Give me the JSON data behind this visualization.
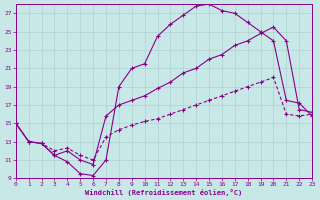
{
  "bg_color": "#c8e8e8",
  "line_color": "#880088",
  "xlabel": "Windchill (Refroidissement éolien,°C)",
  "xlim": [
    0,
    23
  ],
  "ylim": [
    9,
    28
  ],
  "xticks": [
    0,
    1,
    2,
    3,
    4,
    5,
    6,
    7,
    8,
    9,
    10,
    11,
    12,
    13,
    14,
    15,
    16,
    17,
    18,
    19,
    20,
    21,
    22,
    23
  ],
  "yticks": [
    9,
    11,
    13,
    15,
    17,
    19,
    21,
    23,
    25,
    27
  ],
  "line1_x": [
    0,
    1,
    2,
    3,
    4,
    5,
    6,
    7,
    8,
    9,
    10,
    11,
    12,
    13,
    14,
    15,
    16,
    17,
    18,
    19,
    20,
    21,
    22,
    23
  ],
  "line1_y": [
    15,
    13,
    12.8,
    11.5,
    10.8,
    9.5,
    9.3,
    11,
    19,
    21,
    21.5,
    24.5,
    25.8,
    26.8,
    27.8,
    28,
    27.3,
    27,
    26,
    25,
    24,
    17.5,
    17.2,
    15.8
  ],
  "line2_x": [
    0,
    1,
    2,
    3,
    4,
    5,
    6,
    7,
    8,
    9,
    10,
    11,
    12,
    13,
    14,
    15,
    16,
    17,
    18,
    19,
    20,
    21,
    22,
    23
  ],
  "line2_y": [
    15,
    13,
    12.8,
    11.5,
    12,
    11,
    10.5,
    15.8,
    17,
    17.5,
    18,
    18.8,
    19.5,
    20.5,
    21,
    22,
    22.5,
    23.5,
    24,
    24.8,
    25.5,
    24,
    16.5,
    16.2
  ],
  "line3_x": [
    0,
    1,
    2,
    3,
    4,
    5,
    6,
    7,
    8,
    9,
    10,
    11,
    12,
    13,
    14,
    15,
    16,
    17,
    18,
    19,
    20,
    21,
    22,
    23
  ],
  "line3_y": [
    15,
    13,
    12.8,
    12,
    12.3,
    11.5,
    11,
    13.5,
    14.3,
    14.8,
    15.2,
    15.5,
    16,
    16.5,
    17,
    17.5,
    18,
    18.5,
    19,
    19.5,
    20,
    16,
    15.8,
    16
  ],
  "lw": 0.8,
  "ms": 3.0
}
